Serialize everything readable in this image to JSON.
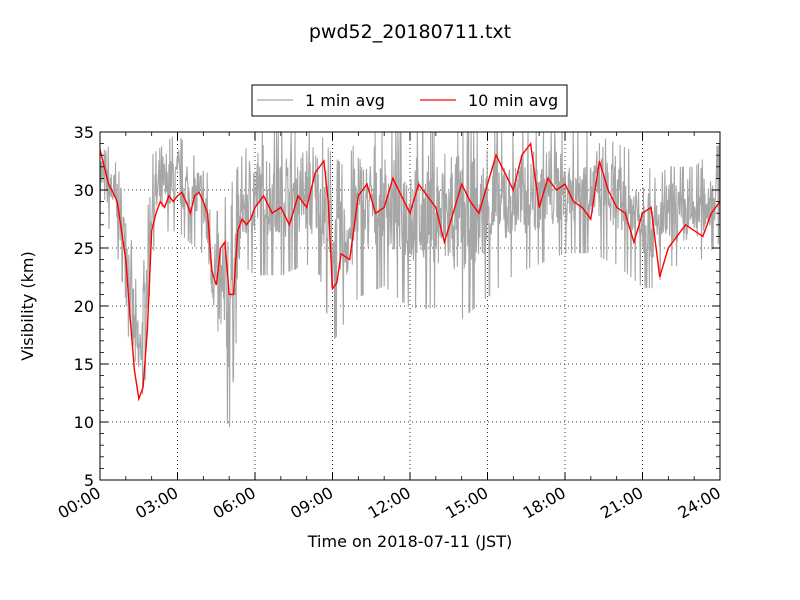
{
  "chart_data": {
    "type": "line",
    "title": "pwd52_20180711.txt",
    "xlabel": "Time on 2018-07-11 (JST)",
    "ylabel": "Visibility (km)",
    "xlim": [
      "00:00",
      "24:00"
    ],
    "ylim": [
      5,
      35
    ],
    "x_ticks": [
      "00:00",
      "03:00",
      "06:00",
      "09:00",
      "12:00",
      "15:00",
      "18:00",
      "21:00",
      "24:00"
    ],
    "y_ticks": [
      5,
      10,
      15,
      20,
      25,
      30,
      35
    ],
    "grid": true,
    "legend": {
      "placement": "top-center-above-plot",
      "entries": [
        "1 min avg",
        "10 min avg"
      ]
    },
    "colors": {
      "1 min avg": "#a6a6a6",
      "10 min avg": "#ff0000"
    },
    "series": [
      {
        "name": "1 min avg",
        "note_noise_band": [
          [
            "00:00",
            27,
            35
          ],
          [
            "00:30",
            26,
            33
          ],
          [
            "01:00",
            20,
            30
          ],
          [
            "01:15",
            12,
            25
          ],
          [
            "01:30",
            10,
            20
          ],
          [
            "01:45",
            13,
            25
          ],
          [
            "02:00",
            24,
            33
          ],
          [
            "02:30",
            26,
            34
          ],
          [
            "03:00",
            26,
            35
          ],
          [
            "03:30",
            25,
            33
          ],
          [
            "04:00",
            24,
            33
          ],
          [
            "04:30",
            14,
            28
          ],
          [
            "05:00",
            8,
            30
          ],
          [
            "05:30",
            23,
            33
          ],
          [
            "06:00",
            22,
            35
          ],
          [
            "07:00",
            22,
            35
          ],
          [
            "08:00",
            23,
            35
          ],
          [
            "08:30",
            22,
            35
          ],
          [
            "09:00",
            16,
            33
          ],
          [
            "09:30",
            18,
            32
          ],
          [
            "10:00",
            20,
            35
          ],
          [
            "11:00",
            21,
            35
          ],
          [
            "12:00",
            19,
            35
          ],
          [
            "13:00",
            19,
            35
          ],
          [
            "14:00",
            18,
            35
          ],
          [
            "15:00",
            20,
            35
          ],
          [
            "16:00",
            22,
            35
          ],
          [
            "17:00",
            23,
            35
          ],
          [
            "18:00",
            24,
            35
          ],
          [
            "19:00",
            24,
            35
          ],
          [
            "20:00",
            23,
            34
          ],
          [
            "21:00",
            21,
            33
          ],
          [
            "21:30",
            21,
            31
          ],
          [
            "22:00",
            23,
            32
          ],
          [
            "23:00",
            23,
            32
          ],
          [
            "24:00",
            25,
            34
          ]
        ]
      },
      {
        "name": "10 min avg",
        "points": [
          [
            "00:00",
            33.5
          ],
          [
            "00:10",
            32.0
          ],
          [
            "00:20",
            30.5
          ],
          [
            "00:30",
            29.8
          ],
          [
            "00:40",
            29.0
          ],
          [
            "00:50",
            26.5
          ],
          [
            "01:00",
            24.0
          ],
          [
            "01:10",
            19.0
          ],
          [
            "01:20",
            14.5
          ],
          [
            "01:30",
            12.0
          ],
          [
            "01:40",
            13.0
          ],
          [
            "01:50",
            18.0
          ],
          [
            "02:00",
            26.5
          ],
          [
            "02:10",
            28.0
          ],
          [
            "02:20",
            29.0
          ],
          [
            "02:30",
            28.5
          ],
          [
            "02:40",
            29.5
          ],
          [
            "02:50",
            29.0
          ],
          [
            "03:00",
            29.5
          ],
          [
            "03:10",
            29.8
          ],
          [
            "03:20",
            29.0
          ],
          [
            "03:30",
            28.0
          ],
          [
            "03:40",
            29.5
          ],
          [
            "03:50",
            29.8
          ],
          [
            "04:00",
            29.0
          ],
          [
            "04:10",
            28.0
          ],
          [
            "04:20",
            23.0
          ],
          [
            "04:30",
            21.8
          ],
          [
            "04:40",
            25.0
          ],
          [
            "04:50",
            25.5
          ],
          [
            "05:00",
            21.0
          ],
          [
            "05:10",
            21.0
          ],
          [
            "05:20",
            26.5
          ],
          [
            "05:30",
            27.5
          ],
          [
            "05:40",
            27.0
          ],
          [
            "05:50",
            27.5
          ],
          [
            "06:00",
            28.5
          ],
          [
            "06:20",
            29.5
          ],
          [
            "06:40",
            28.0
          ],
          [
            "07:00",
            28.5
          ],
          [
            "07:20",
            27.0
          ],
          [
            "07:40",
            29.5
          ],
          [
            "08:00",
            28.5
          ],
          [
            "08:20",
            31.5
          ],
          [
            "08:40",
            32.5
          ],
          [
            "08:50",
            29.0
          ],
          [
            "09:00",
            21.5
          ],
          [
            "09:10",
            22.0
          ],
          [
            "09:20",
            24.5
          ],
          [
            "09:40",
            24.0
          ],
          [
            "10:00",
            29.5
          ],
          [
            "10:20",
            30.5
          ],
          [
            "10:40",
            28.0
          ],
          [
            "11:00",
            28.5
          ],
          [
            "11:20",
            31.0
          ],
          [
            "11:40",
            29.5
          ],
          [
            "12:00",
            28.0
          ],
          [
            "12:20",
            30.5
          ],
          [
            "12:40",
            29.5
          ],
          [
            "13:00",
            28.5
          ],
          [
            "13:20",
            25.5
          ],
          [
            "13:40",
            28.0
          ],
          [
            "14:00",
            30.5
          ],
          [
            "14:20",
            29.0
          ],
          [
            "14:40",
            28.0
          ],
          [
            "15:00",
            30.5
          ],
          [
            "15:20",
            33.0
          ],
          [
            "15:40",
            31.5
          ],
          [
            "16:00",
            30.0
          ],
          [
            "16:20",
            33.0
          ],
          [
            "16:40",
            34.0
          ],
          [
            "17:00",
            28.5
          ],
          [
            "17:20",
            31.0
          ],
          [
            "17:40",
            30.0
          ],
          [
            "18:00",
            30.5
          ],
          [
            "18:20",
            29.0
          ],
          [
            "18:40",
            28.5
          ],
          [
            "19:00",
            27.5
          ],
          [
            "19:20",
            32.5
          ],
          [
            "19:40",
            30.0
          ],
          [
            "20:00",
            28.5
          ],
          [
            "20:20",
            28.0
          ],
          [
            "20:40",
            25.5
          ],
          [
            "21:00",
            28.0
          ],
          [
            "21:20",
            28.5
          ],
          [
            "21:40",
            22.5
          ],
          [
            "22:00",
            25.0
          ],
          [
            "22:20",
            26.0
          ],
          [
            "22:40",
            27.0
          ],
          [
            "23:00",
            26.5
          ],
          [
            "23:20",
            26.0
          ],
          [
            "23:40",
            28.0
          ],
          [
            "24:00",
            29.0
          ]
        ]
      }
    ]
  }
}
